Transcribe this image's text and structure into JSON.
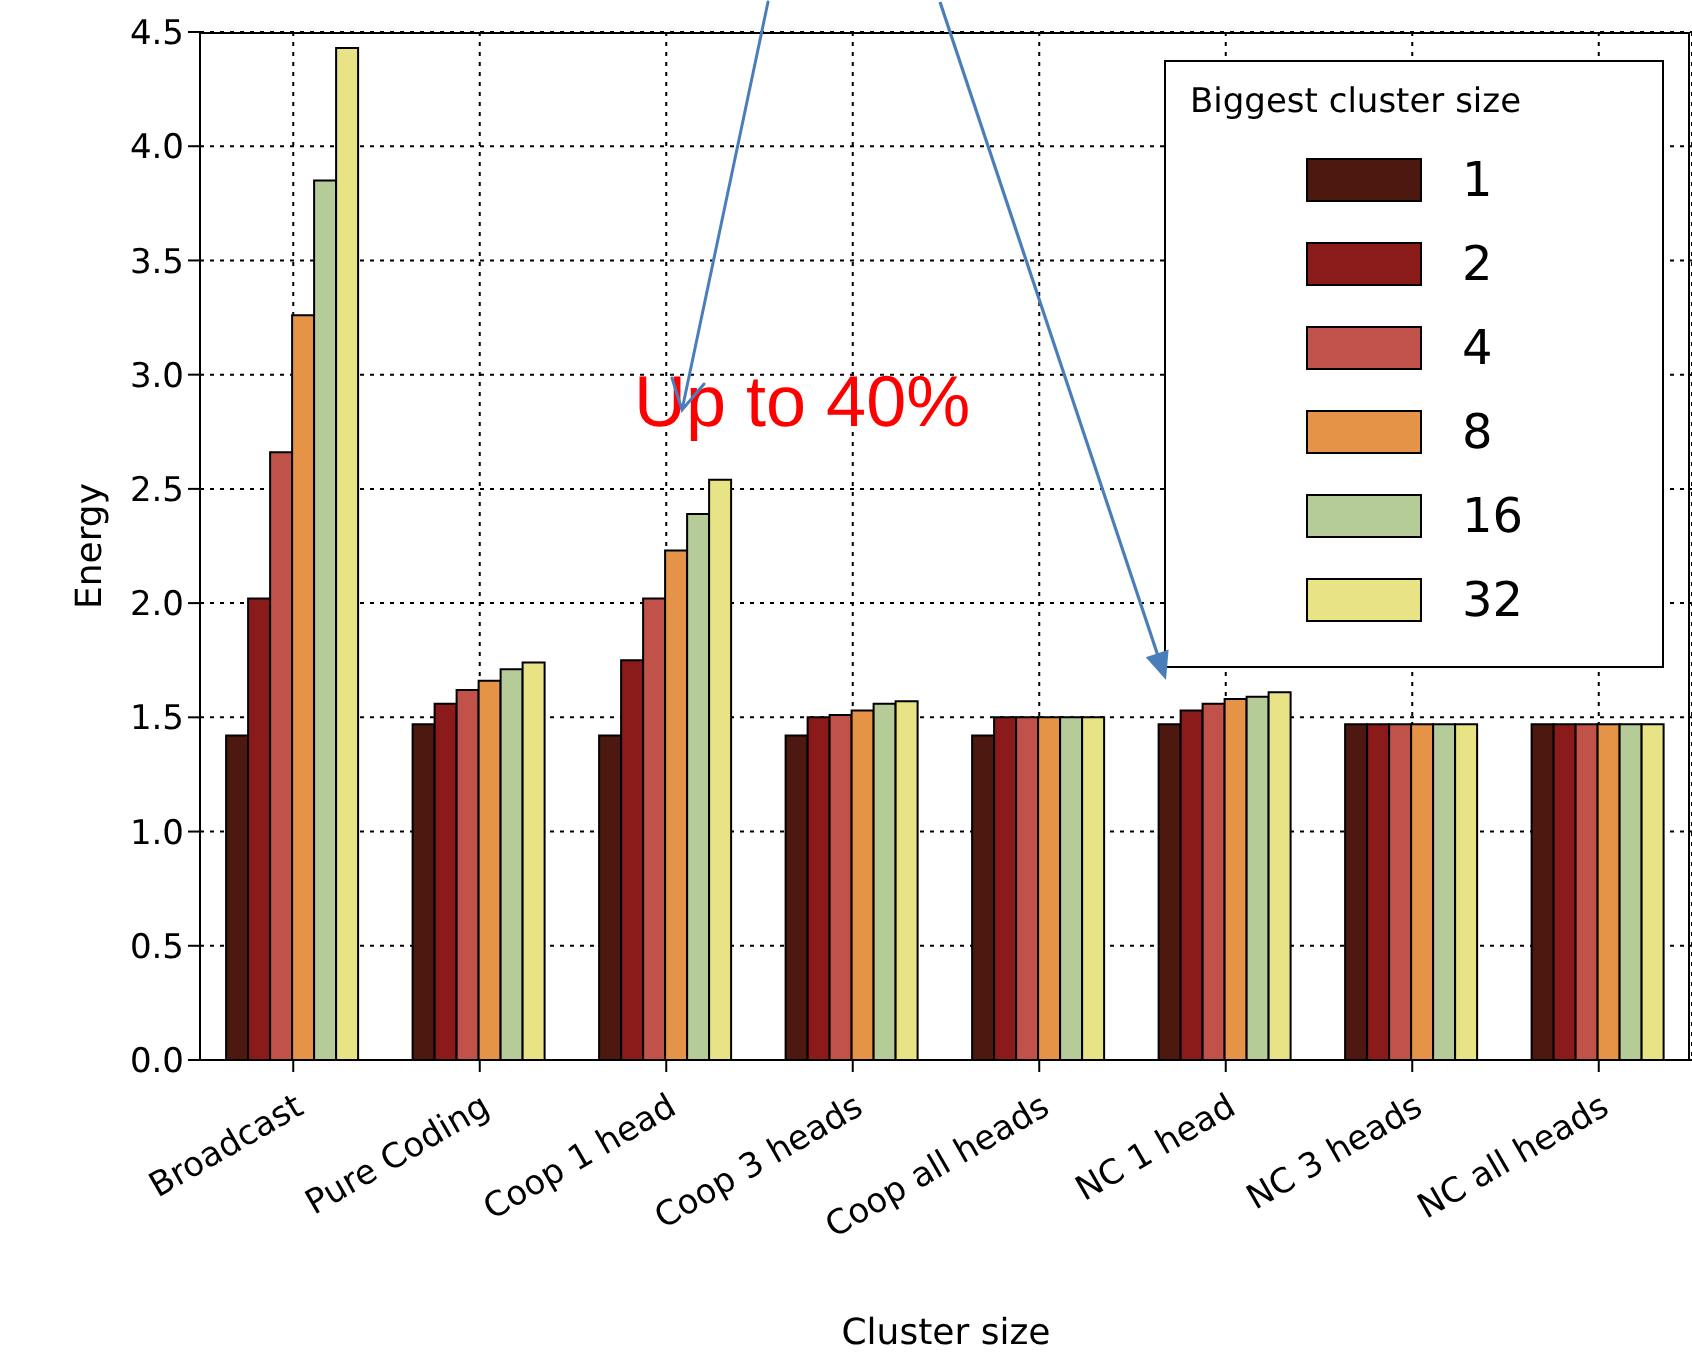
{
  "chart_data": {
    "type": "bar",
    "xlabel": "Cluster size",
    "ylabel": "Energy",
    "legend_title": "Biggest cluster size",
    "categories": [
      "Broadcast",
      "Pure Coding",
      "Coop 1 head",
      "Coop 3 heads",
      "Coop all heads",
      "NC 1 head",
      "NC 3 heads",
      "NC all heads"
    ],
    "series": [
      {
        "name": "1",
        "color": "#4d1810",
        "values": [
          1.42,
          1.47,
          1.42,
          1.42,
          1.42,
          1.47,
          1.47,
          1.47
        ]
      },
      {
        "name": "2",
        "color": "#8b1a1a",
        "values": [
          2.02,
          1.56,
          1.75,
          1.5,
          1.5,
          1.53,
          1.47,
          1.47
        ]
      },
      {
        "name": "4",
        "color": "#c0524a",
        "values": [
          2.66,
          1.62,
          2.02,
          1.51,
          1.5,
          1.56,
          1.47,
          1.47
        ]
      },
      {
        "name": "8",
        "color": "#e59447",
        "values": [
          3.26,
          1.66,
          2.23,
          1.53,
          1.5,
          1.58,
          1.47,
          1.47
        ]
      },
      {
        "name": "16",
        "color": "#b5cc98",
        "values": [
          3.85,
          1.71,
          2.39,
          1.56,
          1.5,
          1.59,
          1.47,
          1.47
        ]
      },
      {
        "name": "32",
        "color": "#e8e485",
        "values": [
          4.43,
          1.74,
          2.54,
          1.57,
          1.5,
          1.61,
          1.47,
          1.47
        ]
      }
    ],
    "ylim": [
      0,
      4.5
    ],
    "yticks": [
      {
        "value": 0,
        "label": "0.0"
      },
      {
        "value": 0.5,
        "label": "0.5"
      },
      {
        "value": 1,
        "label": "1.0"
      },
      {
        "value": 1.5,
        "label": "1.5"
      },
      {
        "value": 2,
        "label": "2.0"
      },
      {
        "value": 2.5,
        "label": "2.5"
      },
      {
        "value": 3,
        "label": "3.0"
      },
      {
        "value": 3.5,
        "label": "3.5"
      },
      {
        "value": 4,
        "label": "4.0"
      },
      {
        "value": 4.5,
        "label": "4.5"
      }
    ],
    "grid": true,
    "legend": "top right",
    "annotations": [
      "Up to 40%"
    ]
  }
}
